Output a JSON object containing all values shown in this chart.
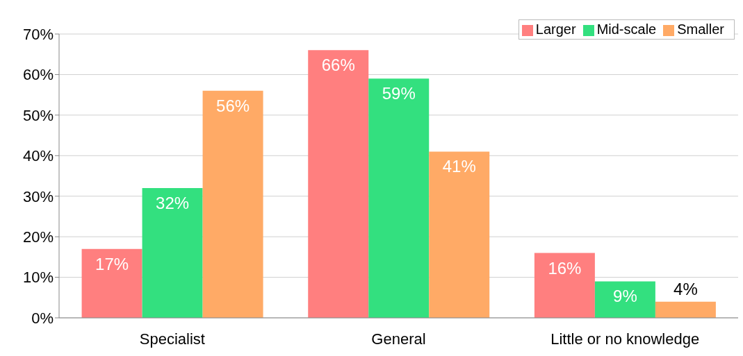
{
  "chart_data": {
    "type": "bar",
    "categories": [
      "Specialist",
      "General",
      "Little or no knowledge"
    ],
    "series": [
      {
        "name": "Larger",
        "color": "#ff7f7f",
        "values": [
          17,
          66,
          16
        ],
        "value_labels": [
          "17%",
          "66%",
          "16%"
        ]
      },
      {
        "name": "Mid-scale",
        "color": "#33e07f",
        "values": [
          32,
          59,
          9
        ],
        "value_labels": [
          "32%",
          "59%",
          "9%"
        ]
      },
      {
        "name": "Smaller",
        "color": "#ffaa66",
        "values": [
          56,
          41,
          4
        ],
        "value_labels": [
          "56%",
          "41%",
          "4%"
        ]
      }
    ],
    "ylim": [
      0,
      70
    ],
    "yticks": [
      {
        "value": 0,
        "label": "0%"
      },
      {
        "value": 10,
        "label": "10%"
      },
      {
        "value": 20,
        "label": "20%"
      },
      {
        "value": 30,
        "label": "30%"
      },
      {
        "value": 40,
        "label": "40%"
      },
      {
        "value": 50,
        "label": "50%"
      },
      {
        "value": 60,
        "label": "60%"
      },
      {
        "value": 70,
        "label": "70%"
      }
    ],
    "grid": "y",
    "legend": "top right"
  }
}
